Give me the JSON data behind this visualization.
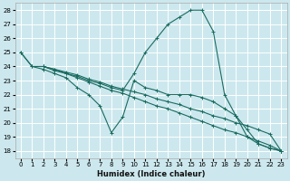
{
  "xlabel": "Humidex (Indice chaleur)",
  "bg_color": "#cce8ee",
  "line_color": "#1a6b60",
  "grid_color": "#ffffff",
  "xlim": [
    -0.5,
    23.5
  ],
  "ylim": [
    17.5,
    28.5
  ],
  "xticks": [
    0,
    1,
    2,
    3,
    4,
    5,
    6,
    7,
    8,
    9,
    10,
    11,
    12,
    13,
    14,
    15,
    16,
    17,
    18,
    19,
    20,
    21,
    22,
    23
  ],
  "yticks": [
    18,
    19,
    20,
    21,
    22,
    23,
    24,
    25,
    26,
    27,
    28
  ],
  "lines": [
    {
      "x": [
        0,
        1,
        2,
        3,
        4,
        5,
        6,
        7,
        8,
        9,
        10,
        11,
        12,
        13,
        14,
        15,
        16,
        17,
        18,
        19,
        20,
        21,
        22,
        23
      ],
      "y": [
        25,
        24,
        24,
        23.8,
        23.5,
        23.3,
        23.0,
        22.8,
        22.5,
        22.3,
        23.5,
        25.0,
        26.0,
        27.0,
        27.5,
        28.0,
        28.0,
        26.5,
        22.0,
        20.5,
        19.5,
        18.5,
        18.2,
        18.0
      ]
    },
    {
      "x": [
        2,
        3,
        4,
        5,
        6,
        7,
        8,
        9,
        10,
        11,
        12,
        13,
        14,
        15,
        16,
        17,
        18,
        19,
        20,
        21,
        22,
        23
      ],
      "y": [
        24,
        23.7,
        23.5,
        23.2,
        22.9,
        22.6,
        22.3,
        22.1,
        21.8,
        21.5,
        21.2,
        21.0,
        20.7,
        20.4,
        20.1,
        19.8,
        19.5,
        19.3,
        19.0,
        18.7,
        18.4,
        18.0
      ]
    },
    {
      "x": [
        2,
        3,
        4,
        5,
        6,
        7,
        8,
        9,
        10,
        11,
        12,
        13,
        14,
        15,
        16,
        17,
        18,
        19,
        20,
        21,
        22,
        23
      ],
      "y": [
        24,
        23.8,
        23.6,
        23.4,
        23.1,
        22.9,
        22.6,
        22.4,
        22.2,
        22.0,
        21.7,
        21.5,
        21.3,
        21.0,
        20.8,
        20.5,
        20.3,
        20.0,
        19.8,
        19.5,
        19.2,
        18.0
      ]
    },
    {
      "x": [
        0,
        1,
        2,
        3,
        4,
        5,
        6,
        7,
        8,
        9,
        10,
        11,
        12,
        13,
        14,
        15,
        16,
        17,
        18,
        19,
        20,
        21,
        22,
        23
      ],
      "y": [
        25,
        24,
        23.8,
        23.5,
        23.2,
        22.5,
        22.0,
        21.2,
        19.3,
        20.4,
        23.0,
        22.5,
        22.3,
        22.0,
        22.0,
        22.0,
        21.8,
        21.5,
        21.0,
        20.5,
        19.0,
        18.5,
        18.2,
        18.0
      ]
    }
  ]
}
